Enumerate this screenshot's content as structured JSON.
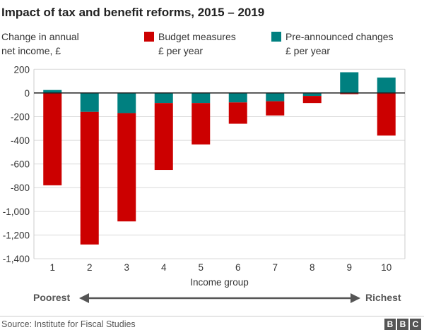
{
  "chart_data": {
    "type": "bar",
    "stacked": true,
    "title": "Impact of tax and benefit reforms, 2015 – 2019",
    "ylabel": "Change in annual net income, £",
    "ylabel_lines": [
      "Change in annual",
      "net income, £"
    ],
    "xlabel": "Income group",
    "categories": [
      "1",
      "2",
      "3",
      "4",
      "5",
      "6",
      "7",
      "8",
      "9",
      "10"
    ],
    "ylim": [
      -1400,
      200
    ],
    "yticks": [
      200,
      0,
      -200,
      -400,
      -600,
      -800,
      -1000,
      -1200,
      -1400
    ],
    "ytick_labels": [
      "200",
      "0",
      "-200",
      "-400",
      "-600",
      "-800",
      "-1,000",
      "-1,200",
      "-1,400"
    ],
    "grid": true,
    "series": [
      {
        "name": "Budget measures",
        "unit": "£ per year",
        "color": "#cc0000",
        "values": [
          -780,
          -1120,
          -915,
          -565,
          -350,
          -180,
          -120,
          -60,
          -10,
          -360
        ]
      },
      {
        "name": "Pre-announced changes",
        "unit": "£ per year",
        "color": "#008080",
        "values": [
          25,
          -160,
          -170,
          -85,
          -85,
          -80,
          -70,
          -25,
          175,
          130
        ]
      }
    ],
    "legend_placement": "top",
    "arrow_left": "Poorest",
    "arrow_right": "Richest"
  },
  "source": "Source: Institute for Fiscal Studies",
  "logo": "BBC"
}
